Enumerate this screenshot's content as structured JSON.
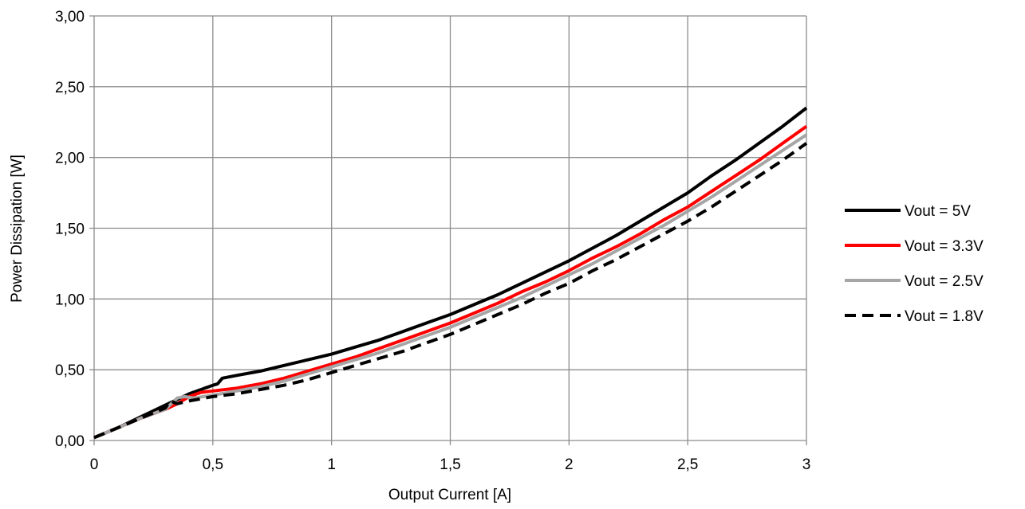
{
  "chart_data": {
    "type": "line",
    "title": "",
    "xlabel": "Output Current [A]",
    "ylabel": "Power Dissipation [W]",
    "xlim": [
      0,
      3
    ],
    "ylim": [
      0,
      3
    ],
    "x_ticks": [
      0,
      0.5,
      1,
      1.5,
      2,
      2.5,
      3
    ],
    "x_tick_labels": [
      "0",
      "0,5",
      "1",
      "1,5",
      "2",
      "2,5",
      "3"
    ],
    "y_ticks": [
      0,
      0.5,
      1,
      1.5,
      2,
      2.5,
      3
    ],
    "y_tick_labels": [
      "0,00",
      "0,50",
      "1,00",
      "1,50",
      "2,00",
      "2,50",
      "3,00"
    ],
    "grid": true,
    "legend_position": "right",
    "series": [
      {
        "name": "Vout = 5V",
        "color": "#000000",
        "style": "solid",
        "points": [
          [
            0,
            0.02
          ],
          [
            0.1,
            0.09
          ],
          [
            0.2,
            0.17
          ],
          [
            0.3,
            0.25
          ],
          [
            0.4,
            0.33
          ],
          [
            0.5,
            0.39
          ],
          [
            0.52,
            0.4
          ],
          [
            0.54,
            0.44
          ],
          [
            0.6,
            0.46
          ],
          [
            0.7,
            0.49
          ],
          [
            0.8,
            0.53
          ],
          [
            0.9,
            0.57
          ],
          [
            1.0,
            0.61
          ],
          [
            1.1,
            0.66
          ],
          [
            1.2,
            0.71
          ],
          [
            1.3,
            0.77
          ],
          [
            1.4,
            0.83
          ],
          [
            1.5,
            0.89
          ],
          [
            1.6,
            0.96
          ],
          [
            1.7,
            1.03
          ],
          [
            1.8,
            1.11
          ],
          [
            1.9,
            1.19
          ],
          [
            2.0,
            1.27
          ],
          [
            2.1,
            1.36
          ],
          [
            2.2,
            1.45
          ],
          [
            2.3,
            1.55
          ],
          [
            2.4,
            1.65
          ],
          [
            2.5,
            1.75
          ],
          [
            2.6,
            1.87
          ],
          [
            2.7,
            1.98
          ],
          [
            2.8,
            2.1
          ],
          [
            2.9,
            2.22
          ],
          [
            3.0,
            2.35
          ]
        ]
      },
      {
        "name": "Vout = 3.3V",
        "color": "#ff0000",
        "style": "solid",
        "points": [
          [
            0,
            0.02
          ],
          [
            0.1,
            0.09
          ],
          [
            0.2,
            0.16
          ],
          [
            0.3,
            0.22
          ],
          [
            0.35,
            0.26
          ],
          [
            0.4,
            0.31
          ],
          [
            0.45,
            0.34
          ],
          [
            0.5,
            0.35
          ],
          [
            0.6,
            0.37
          ],
          [
            0.7,
            0.4
          ],
          [
            0.8,
            0.44
          ],
          [
            0.9,
            0.49
          ],
          [
            1.0,
            0.54
          ],
          [
            1.1,
            0.59
          ],
          [
            1.2,
            0.65
          ],
          [
            1.3,
            0.71
          ],
          [
            1.4,
            0.77
          ],
          [
            1.5,
            0.83
          ],
          [
            1.6,
            0.9
          ],
          [
            1.7,
            0.97
          ],
          [
            1.8,
            1.05
          ],
          [
            1.9,
            1.12
          ],
          [
            2.0,
            1.2
          ],
          [
            2.1,
            1.29
          ],
          [
            2.2,
            1.37
          ],
          [
            2.3,
            1.46
          ],
          [
            2.4,
            1.56
          ],
          [
            2.5,
            1.65
          ],
          [
            2.6,
            1.76
          ],
          [
            2.7,
            1.87
          ],
          [
            2.8,
            1.98
          ],
          [
            2.9,
            2.1
          ],
          [
            3.0,
            2.22
          ]
        ]
      },
      {
        "name": "Vout = 2.5V",
        "color": "#a6a6a6",
        "style": "solid",
        "points": [
          [
            0,
            0.02
          ],
          [
            0.1,
            0.09
          ],
          [
            0.2,
            0.16
          ],
          [
            0.3,
            0.22
          ],
          [
            0.35,
            0.3
          ],
          [
            0.38,
            0.31
          ],
          [
            0.42,
            0.3
          ],
          [
            0.5,
            0.32
          ],
          [
            0.6,
            0.35
          ],
          [
            0.7,
            0.38
          ],
          [
            0.8,
            0.42
          ],
          [
            0.9,
            0.47
          ],
          [
            1.0,
            0.52
          ],
          [
            1.1,
            0.57
          ],
          [
            1.2,
            0.62
          ],
          [
            1.3,
            0.68
          ],
          [
            1.4,
            0.74
          ],
          [
            1.5,
            0.8
          ],
          [
            1.6,
            0.87
          ],
          [
            1.7,
            0.94
          ],
          [
            1.8,
            1.01
          ],
          [
            1.9,
            1.09
          ],
          [
            2.0,
            1.17
          ],
          [
            2.1,
            1.25
          ],
          [
            2.2,
            1.34
          ],
          [
            2.3,
            1.43
          ],
          [
            2.4,
            1.52
          ],
          [
            2.5,
            1.62
          ],
          [
            2.6,
            1.72
          ],
          [
            2.7,
            1.83
          ],
          [
            2.8,
            1.94
          ],
          [
            2.9,
            2.05
          ],
          [
            3.0,
            2.16
          ]
        ]
      },
      {
        "name": "Vout = 1.8V",
        "color": "#000000",
        "style": "dashed",
        "points": [
          [
            0,
            0.02
          ],
          [
            0.1,
            0.09
          ],
          [
            0.2,
            0.16
          ],
          [
            0.3,
            0.23
          ],
          [
            0.32,
            0.28
          ],
          [
            0.35,
            0.26
          ],
          [
            0.4,
            0.28
          ],
          [
            0.5,
            0.31
          ],
          [
            0.6,
            0.33
          ],
          [
            0.7,
            0.36
          ],
          [
            0.8,
            0.39
          ],
          [
            0.9,
            0.43
          ],
          [
            1.0,
            0.48
          ],
          [
            1.1,
            0.53
          ],
          [
            1.2,
            0.58
          ],
          [
            1.3,
            0.63
          ],
          [
            1.4,
            0.69
          ],
          [
            1.5,
            0.75
          ],
          [
            1.6,
            0.82
          ],
          [
            1.7,
            0.89
          ],
          [
            1.8,
            0.96
          ],
          [
            1.9,
            1.04
          ],
          [
            2.0,
            1.11
          ],
          [
            2.1,
            1.2
          ],
          [
            2.2,
            1.28
          ],
          [
            2.3,
            1.37
          ],
          [
            2.4,
            1.46
          ],
          [
            2.5,
            1.55
          ],
          [
            2.6,
            1.65
          ],
          [
            2.7,
            1.76
          ],
          [
            2.8,
            1.87
          ],
          [
            2.9,
            1.98
          ],
          [
            3.0,
            2.1
          ]
        ]
      }
    ],
    "colors": {
      "grid": "#8c8c8c",
      "axis": "#8c8c8c"
    }
  }
}
